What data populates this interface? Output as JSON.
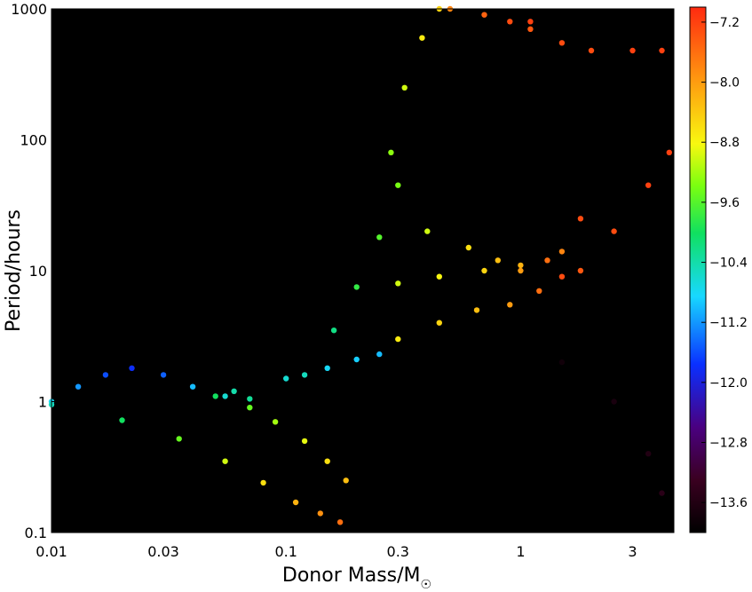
{
  "chart_data": {
    "type": "scatter",
    "title": "",
    "xlabel": "Donor Mass/M",
    "xlabel_subscript": "☉",
    "ylabel": "Period/hours",
    "xscale": "log",
    "yscale": "log",
    "xlim": [
      0.01,
      4.5
    ],
    "ylim": [
      0.1,
      1000
    ],
    "x_ticks": [
      {
        "value": 0.01,
        "label": "0.01"
      },
      {
        "value": 0.03,
        "label": "0.03"
      },
      {
        "value": 0.1,
        "label": "0.1"
      },
      {
        "value": 0.3,
        "label": "0.3"
      },
      {
        "value": 1,
        "label": "1"
      },
      {
        "value": 3,
        "label": "3"
      }
    ],
    "y_ticks": [
      {
        "value": 0.1,
        "label": "0.1"
      },
      {
        "value": 1,
        "label": "1"
      },
      {
        "value": 10,
        "label": "10"
      },
      {
        "value": 100,
        "label": "100"
      },
      {
        "value": 1000,
        "label": "1000"
      }
    ],
    "background": "#000000",
    "grid": false,
    "legend": "none",
    "colorbar": {
      "placement": "right",
      "colormap": "jet",
      "range": [
        -14.0,
        -7.0
      ],
      "ticks": [
        {
          "value": -7.2,
          "label": "−7.2"
        },
        {
          "value": -8.0,
          "label": "−8.0"
        },
        {
          "value": -8.8,
          "label": "−8.8"
        },
        {
          "value": -9.6,
          "label": "−9.6"
        },
        {
          "value": -10.4,
          "label": "−10.4"
        },
        {
          "value": -11.2,
          "label": "−11.2"
        },
        {
          "value": -12.0,
          "label": "−12.0"
        },
        {
          "value": -12.8,
          "label": "−12.8"
        },
        {
          "value": -13.6,
          "label": "−13.6"
        }
      ]
    },
    "series": [
      {
        "x": [
          0.01,
          0.013,
          0.017,
          0.022,
          0.03,
          0.04,
          0.055,
          0.07
        ],
        "y": [
          1.0,
          1.3,
          1.6,
          1.8,
          1.6,
          1.3,
          1.1,
          1.05
        ],
        "z": [
          -10.8,
          -11.2,
          -11.6,
          -11.8,
          -11.5,
          -11.0,
          -10.6,
          -10.3
        ]
      },
      {
        "x": [
          0.01,
          0.02,
          0.035,
          0.055,
          0.08,
          0.11,
          0.14,
          0.17
        ],
        "y": [
          0.95,
          0.72,
          0.52,
          0.35,
          0.24,
          0.17,
          0.14,
          0.12
        ],
        "z": [
          -10.5,
          -10.0,
          -9.5,
          -9.0,
          -8.6,
          -8.2,
          -7.9,
          -7.6
        ]
      },
      {
        "x": [
          0.05,
          0.07,
          0.09,
          0.12,
          0.15,
          0.18
        ],
        "y": [
          1.1,
          0.9,
          0.7,
          0.5,
          0.35,
          0.25
        ],
        "z": [
          -10.0,
          -9.5,
          -9.2,
          -8.9,
          -8.6,
          -8.3
        ]
      },
      {
        "x": [
          0.06,
          0.1,
          0.15,
          0.2,
          0.25
        ],
        "y": [
          1.2,
          1.5,
          1.8,
          2.1,
          2.3
        ],
        "z": [
          -10.4,
          -10.6,
          -10.8,
          -10.9,
          -11.0
        ]
      },
      {
        "x": [
          0.12,
          0.16,
          0.2,
          0.25,
          0.3
        ],
        "y": [
          1.6,
          3.5,
          7.5,
          18.0,
          45.0
        ],
        "z": [
          -10.5,
          -10.2,
          -9.8,
          -9.6,
          -9.4
        ]
      },
      {
        "x": [
          0.28,
          0.32,
          0.38,
          0.45
        ],
        "y": [
          80.0,
          250.0,
          600.0,
          1000.0
        ],
        "z": [
          -9.3,
          -9.0,
          -8.7,
          -8.5
        ]
      },
      {
        "x": [
          0.3,
          0.45,
          0.65,
          0.9,
          1.2,
          1.5
        ],
        "y": [
          3.0,
          4.0,
          5.0,
          5.5,
          7.0,
          9.0
        ],
        "z": [
          -8.7,
          -8.5,
          -8.3,
          -8.0,
          -7.6,
          -7.3
        ]
      },
      {
        "x": [
          0.3,
          0.45,
          0.7,
          1.0,
          1.5
        ],
        "y": [
          8.0,
          9.0,
          10.0,
          11.0,
          14.0
        ],
        "z": [
          -9.0,
          -8.8,
          -8.5,
          -8.2,
          -7.8
        ]
      },
      {
        "x": [
          0.4,
          0.6,
          0.8,
          1.0,
          1.3,
          1.8
        ],
        "y": [
          20.0,
          15.0,
          12.0,
          10.0,
          12.0,
          25.0
        ],
        "z": [
          -9.0,
          -8.6,
          -8.3,
          -8.0,
          -7.6,
          -7.3
        ]
      },
      {
        "x": [
          0.5,
          0.7,
          0.9,
          1.1
        ],
        "y": [
          1000.0,
          900.0,
          800.0,
          800.0
        ],
        "z": [
          -7.8,
          -7.5,
          -7.3,
          -7.2
        ]
      },
      {
        "x": [
          1.1,
          1.5,
          2.0,
          3.0,
          4.0
        ],
        "y": [
          700.0,
          550.0,
          480.0,
          480.0,
          480.0
        ],
        "z": [
          -7.4,
          -7.3,
          -7.3,
          -7.2,
          -7.2
        ]
      },
      {
        "x": [
          1.8,
          2.5,
          3.5,
          4.3
        ],
        "y": [
          10.0,
          20.0,
          45.0,
          80.0
        ],
        "z": [
          -7.4,
          -7.3,
          -7.2,
          -7.2
        ]
      },
      {
        "x": [
          1.5,
          2.5,
          3.5,
          4.0
        ],
        "y": [
          2.0,
          1.0,
          0.4,
          0.2
        ],
        "z": [
          -13.8,
          -13.7,
          -13.6,
          -13.5
        ]
      }
    ]
  }
}
